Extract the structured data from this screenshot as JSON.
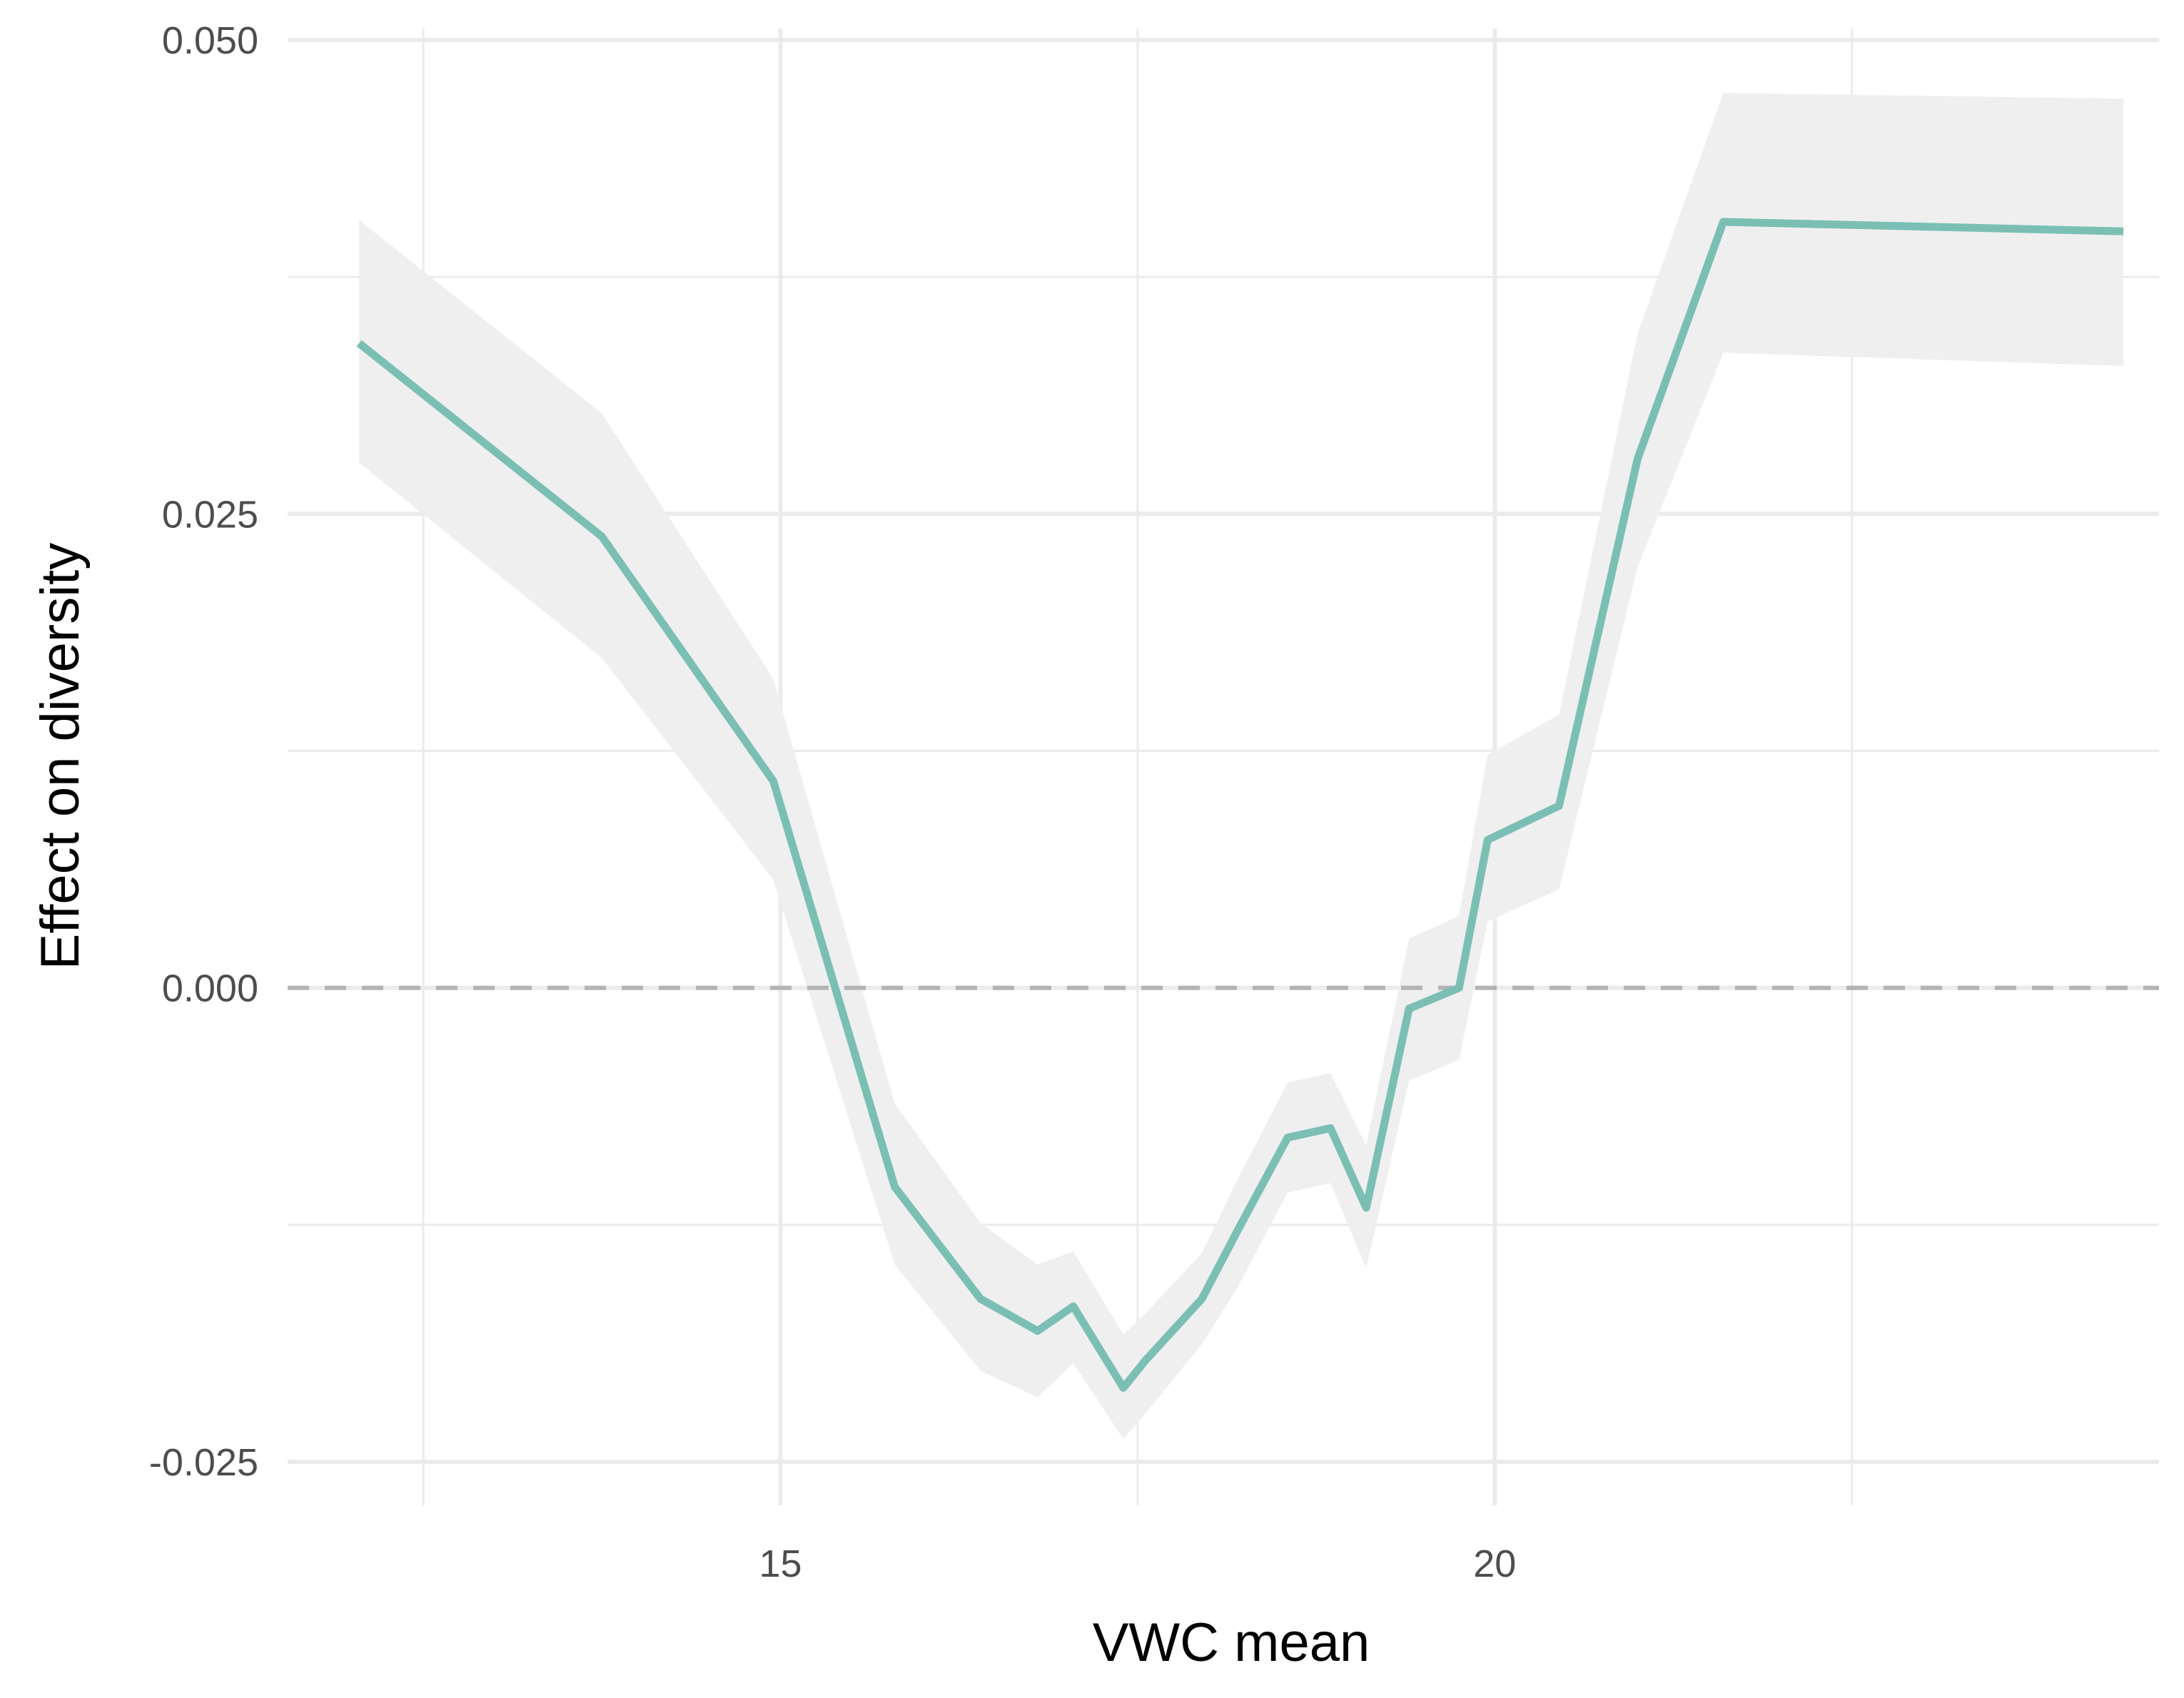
{
  "chart_data": {
    "type": "line",
    "title": "",
    "xlabel": "VWC mean",
    "ylabel": "Effect on diversity",
    "xlim": [
      11.55,
      24.65
    ],
    "ylim": [
      -0.0273,
      0.0506
    ],
    "x_ticks": [
      {
        "value": 15,
        "label": "15"
      },
      {
        "value": 20,
        "label": "20"
      }
    ],
    "x_minor_gridlines": [
      12.5,
      17.5,
      22.5
    ],
    "y_ticks": [
      {
        "value": -0.025,
        "label": "-0.025"
      },
      {
        "value": 0.0,
        "label": "0.000"
      },
      {
        "value": 0.025,
        "label": "0.025"
      },
      {
        "value": 0.05,
        "label": "0.050"
      }
    ],
    "y_minor_gridlines": [
      -0.0125,
      0.0125,
      0.0375
    ],
    "grid": true,
    "reference_line": {
      "y": 0,
      "style": "dashed",
      "color": "#b3b3b3"
    },
    "colors": {
      "line": "#7bbfb4",
      "ribbon": "#efefef",
      "grid": "#ebebeb",
      "background": "#ffffff"
    },
    "series": [
      {
        "x": [
          12.05,
          13.75,
          14.95,
          15.8,
          16.4,
          16.8,
          17.05,
          17.4,
          17.55,
          17.95,
          18.2,
          18.55,
          18.85,
          19.1,
          19.4,
          19.75,
          19.95,
          20.45,
          21.0,
          21.6,
          24.4
        ],
        "y": [
          0.034,
          0.0238,
          0.0109,
          -0.0105,
          -0.0164,
          -0.0181,
          -0.0168,
          -0.0211,
          -0.0197,
          -0.0164,
          -0.0128,
          -0.0079,
          -0.0074,
          -0.0116,
          -0.0011,
          0.0,
          0.0078,
          0.0096,
          0.0279,
          0.0404,
          0.0399
        ],
        "lower": [
          0.0277,
          0.0174,
          0.0057,
          -0.0146,
          -0.0202,
          -0.0216,
          -0.0198,
          -0.0238,
          -0.0225,
          -0.0188,
          -0.0158,
          -0.0108,
          -0.0103,
          -0.0148,
          -0.0049,
          -0.0038,
          0.0035,
          0.0052,
          0.0222,
          0.0335,
          0.0328
        ],
        "upper": [
          0.0405,
          0.0303,
          0.0163,
          -0.0061,
          -0.0124,
          -0.0146,
          -0.0139,
          -0.0183,
          -0.0172,
          -0.014,
          -0.0101,
          -0.005,
          -0.0045,
          -0.0083,
          0.0026,
          0.0038,
          0.0123,
          0.0144,
          0.0345,
          0.0472,
          0.0469
        ]
      }
    ]
  }
}
